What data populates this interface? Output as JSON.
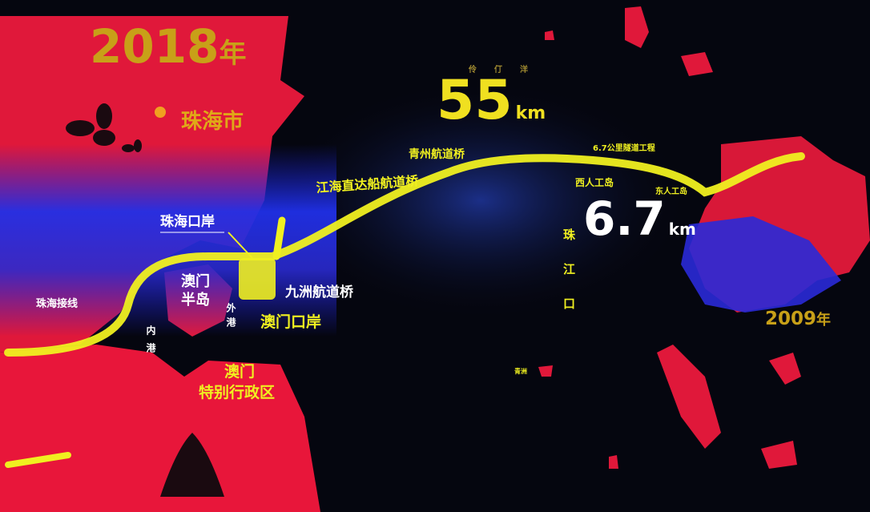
{
  "year_left": {
    "number": 2018,
    "unit": "年"
  },
  "city_zhuhai": "珠海市",
  "zhuhai_port": "珠海口岸",
  "zhuhai_link": "珠海接线",
  "macau_peninsula": [
    "澳门",
    "半岛"
  ],
  "inner_harbor": "内港",
  "outer_harbor": "外港",
  "macau_port": "澳门口岸",
  "macau_sar": [
    "澳门",
    "特别行政区"
  ],
  "jiuzhou_bridge": "九洲航道桥",
  "jianghai_bridge": "江海直达船航道桥",
  "qingzhou_bridge": "青州航道桥",
  "lingding": "伶仃洋",
  "bridge_length": {
    "number": 55,
    "unit": "km"
  },
  "tunnel_note": "6.7公里隧道工程",
  "west_island": "西人工岛",
  "east_island": "东人工岛",
  "tunnel_length": {
    "number": 6.7,
    "unit": "km"
  },
  "pearl_river_mouth": "珠江口",
  "year_right": {
    "number": 2009,
    "unit": "年"
  },
  "qingzhou": "青洲"
}
